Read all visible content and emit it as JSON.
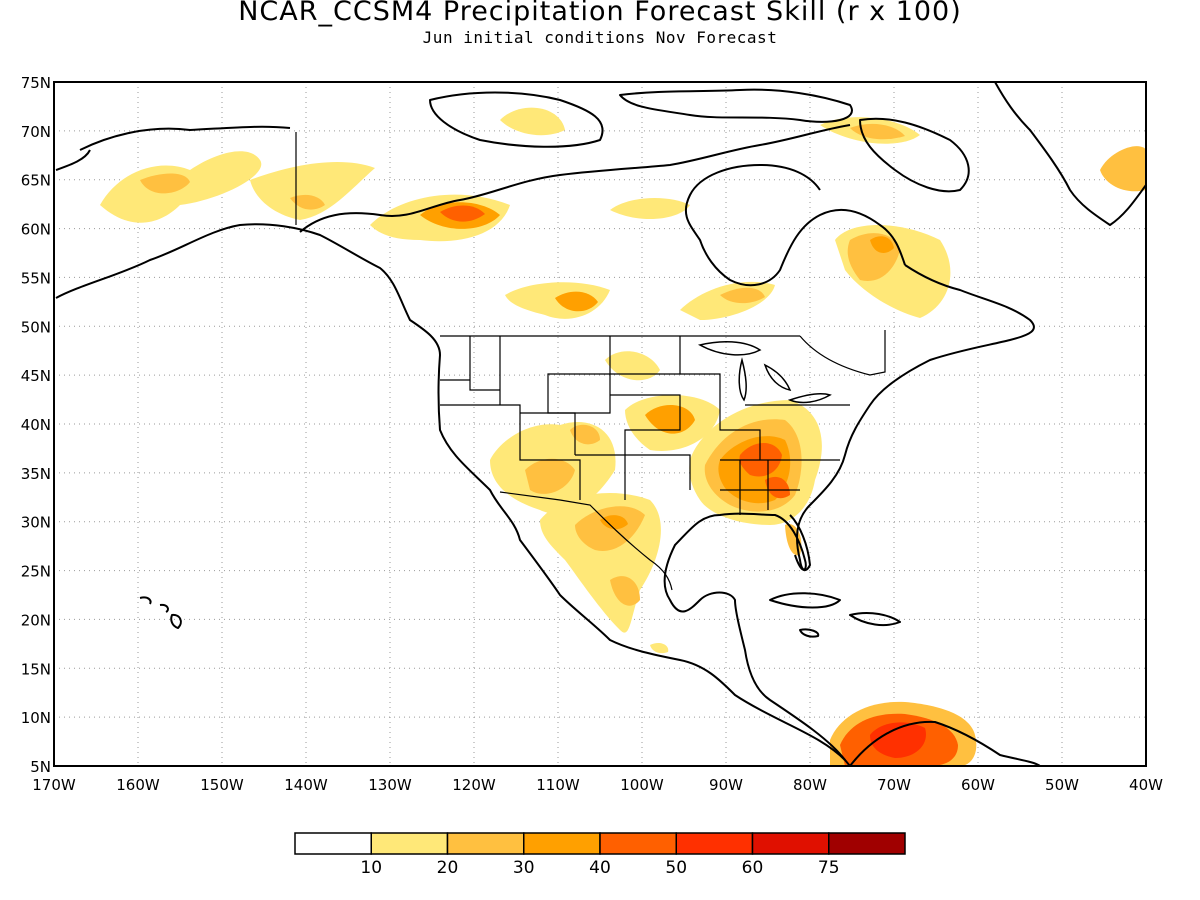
{
  "title": "NCAR_CCSM4 Precipitation Forecast Skill (r x 100)",
  "subtitle": "Jun initial conditions  Nov Forecast",
  "lat_labels": [
    "75N",
    "70N",
    "65N",
    "60N",
    "55N",
    "50N",
    "45N",
    "40N",
    "35N",
    "30N",
    "25N",
    "20N",
    "15N",
    "10N",
    "5N"
  ],
  "lon_labels": [
    "170W",
    "160W",
    "150W",
    "140W",
    "130W",
    "120W",
    "110W",
    "100W",
    "90W",
    "80W",
    "70W",
    "60W",
    "50W",
    "40W"
  ],
  "colorbar": {
    "labels": [
      "10",
      "20",
      "30",
      "40",
      "50",
      "60",
      "75"
    ],
    "colors": [
      "#ffffff",
      "#ffe878",
      "#ffc040",
      "#ffa000",
      "#ff6000",
      "#ff3000",
      "#e01000",
      "#a00000"
    ]
  }
}
